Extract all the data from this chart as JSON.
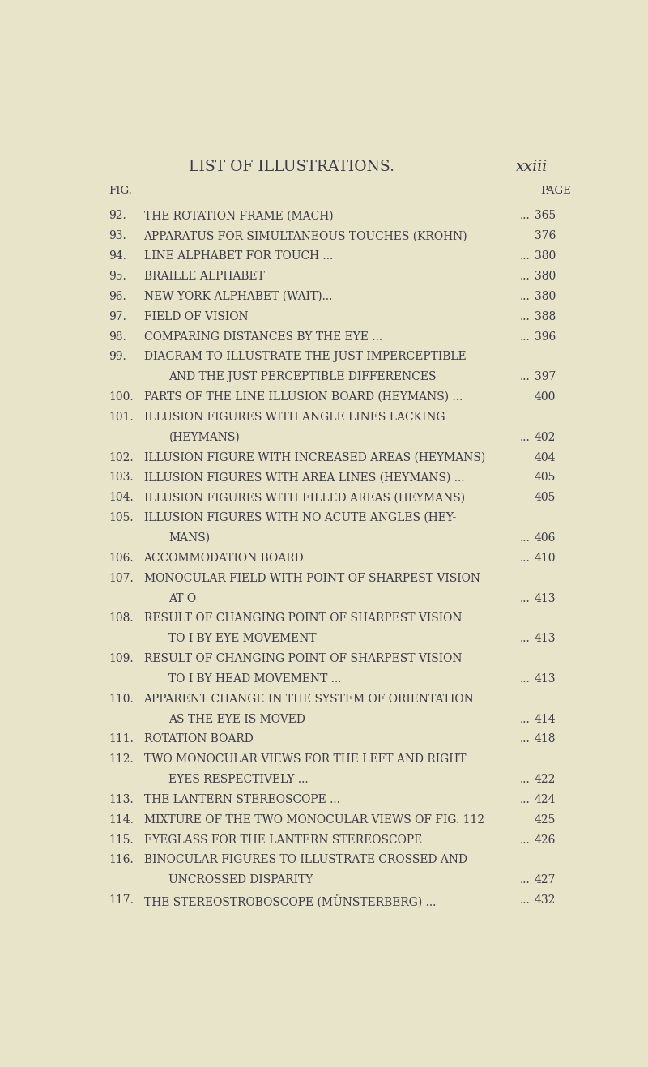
{
  "background_color": "#e8e4c9",
  "text_color": "#3a3a4a",
  "title": "LIST OF ILLUSTRATIONS.",
  "title_page": "xxiii",
  "col_fig": "FIG.",
  "col_page": "PAGE",
  "entries": [
    {
      "num": "92.",
      "text": "THE ROTATION FRAME (MACH)",
      "dots": true,
      "page": "365",
      "indent": false
    },
    {
      "num": "93.",
      "text": "APPARATUS FOR SIMULTANEOUS TOUCHES (KROHN)",
      "dots": false,
      "page": "376",
      "indent": false
    },
    {
      "num": "94.",
      "text": "LINE ALPHABET FOR TOUCH ...",
      "dots": true,
      "page": "380",
      "indent": false
    },
    {
      "num": "95.",
      "text": "BRAILLE ALPHABET",
      "dots": true,
      "page": "380",
      "indent": false
    },
    {
      "num": "96.",
      "text": "NEW YORK ALPHABET (WAIT)...",
      "dots": true,
      "page": "380",
      "indent": false
    },
    {
      "num": "97.",
      "text": "FIELD OF VISION",
      "dots": true,
      "page": "388",
      "indent": false
    },
    {
      "num": "98.",
      "text": "COMPARING DISTANCES BY THE EYE ...",
      "dots": true,
      "page": "396",
      "indent": false
    },
    {
      "num": "99.",
      "text": "DIAGRAM TO ILLUSTRATE THE JUST IMPERCEPTIBLE",
      "dots": false,
      "page": "",
      "indent": false
    },
    {
      "num": "",
      "text": "AND THE JUST PERCEPTIBLE DIFFERENCES",
      "dots": true,
      "page": "397",
      "indent": true
    },
    {
      "num": "100.",
      "text": "PARTS OF THE LINE ILLUSION BOARD (HEYMANS) ...",
      "dots": false,
      "page": "400",
      "indent": false
    },
    {
      "num": "101.",
      "text": "ILLUSION FIGURES WITH ANGLE LINES LACKING",
      "dots": false,
      "page": "",
      "indent": false
    },
    {
      "num": "",
      "text": "(HEYMANS)",
      "dots": true,
      "page": "402",
      "indent": true
    },
    {
      "num": "102.",
      "text": "ILLUSION FIGURE WITH INCREASED AREAS (HEYMANS)",
      "dots": false,
      "page": "404",
      "indent": false
    },
    {
      "num": "103.",
      "text": "ILLUSION FIGURES WITH AREA LINES (HEYMANS) ...",
      "dots": false,
      "page": "405",
      "indent": false
    },
    {
      "num": "104.",
      "text": "ILLUSION FIGURES WITH FILLED AREAS (HEYMANS)",
      "dots": false,
      "page": "405",
      "indent": false
    },
    {
      "num": "105.",
      "text": "ILLUSION FIGURES WITH NO ACUTE ANGLES (HEY-",
      "dots": false,
      "page": "",
      "indent": false
    },
    {
      "num": "",
      "text": "MANS)",
      "dots": true,
      "page": "406",
      "indent": true
    },
    {
      "num": "106.",
      "text": "ACCOMMODATION BOARD",
      "dots": true,
      "page": "410",
      "indent": false
    },
    {
      "num": "107.",
      "text": "MONOCULAR FIELD WITH POINT OF SHARPEST VISION",
      "dots": false,
      "page": "",
      "indent": false
    },
    {
      "num": "",
      "text": "AT O",
      "dots": true,
      "page": "413",
      "indent": true
    },
    {
      "num": "108.",
      "text": "RESULT OF CHANGING POINT OF SHARPEST VISION",
      "dots": false,
      "page": "",
      "indent": false
    },
    {
      "num": "",
      "text": "TO I BY EYE MOVEMENT",
      "dots": true,
      "page": "413",
      "indent": true
    },
    {
      "num": "109.",
      "text": "RESULT OF CHANGING POINT OF SHARPEST VISION",
      "dots": false,
      "page": "",
      "indent": false
    },
    {
      "num": "",
      "text": "TO I BY HEAD MOVEMENT ...",
      "dots": true,
      "page": "413",
      "indent": true
    },
    {
      "num": "110.",
      "text": "APPARENT CHANGE IN THE SYSTEM OF ORIENTATION",
      "dots": false,
      "page": "",
      "indent": false
    },
    {
      "num": "",
      "text": "AS THE EYE IS MOVED",
      "dots": true,
      "page": "414",
      "indent": true
    },
    {
      "num": "111.",
      "text": "ROTATION BOARD",
      "dots": true,
      "page": "418",
      "indent": false
    },
    {
      "num": "112.",
      "text": "TWO MONOCULAR VIEWS FOR THE LEFT AND RIGHT",
      "dots": false,
      "page": "",
      "indent": false
    },
    {
      "num": "",
      "text": "EYES RESPECTIVELY ...",
      "dots": true,
      "page": "422",
      "indent": true
    },
    {
      "num": "113.",
      "text": "THE LANTERN STEREOSCOPE ...",
      "dots": true,
      "page": "424",
      "indent": false
    },
    {
      "num": "114.",
      "text": "MIXTURE OF THE TWO MONOCULAR VIEWS OF FIG. 112",
      "dots": false,
      "page": "425",
      "indent": false
    },
    {
      "num": "115.",
      "text": "EYEGLASS FOR THE LANTERN STEREOSCOPE",
      "dots": true,
      "page": "426",
      "indent": false
    },
    {
      "num": "116.",
      "text": "BINOCULAR FIGURES TO ILLUSTRATE CROSSED AND",
      "dots": false,
      "page": "",
      "indent": false
    },
    {
      "num": "",
      "text": "UNCROSSED DISPARITY",
      "dots": true,
      "page": "427",
      "indent": true
    },
    {
      "num": "117.",
      "text": "THE STEREOSTROBOSCOPE (MÜNSTERBERG) ...",
      "dots": true,
      "page": "432",
      "indent": false
    }
  ],
  "font_family": "serif",
  "title_fontsize": 13.5,
  "col_header_fontsize": 9.5,
  "entry_fontsize": 10.0,
  "figsize": [
    8.0,
    13.17
  ]
}
